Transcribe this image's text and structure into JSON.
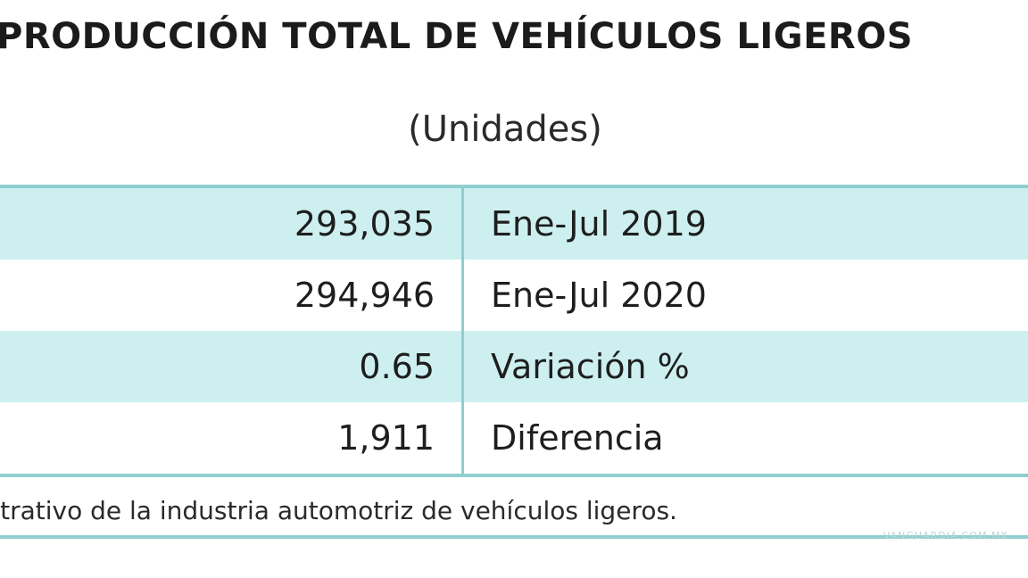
{
  "title": "PRODUCCIÓN TOTAL DE VEHÍCULOS LIGEROS",
  "subtitle": "(Unidades)",
  "rows": [
    {
      "value": "293,035",
      "label": "Ene-Jul 2019"
    },
    {
      "value": "294,946",
      "label": "Ene-Jul 2020"
    },
    {
      "value": "0.65",
      "label": "Variación %"
    },
    {
      "value": "1,911",
      "label": "Diferencia"
    }
  ],
  "footer": "nistrativo de la industria automotriz de vehículos ligeros.",
  "watermark": "VANGUARDIA.COM.MX",
  "colors": {
    "band": "#cdeff0",
    "border": "#8fcfd0"
  }
}
